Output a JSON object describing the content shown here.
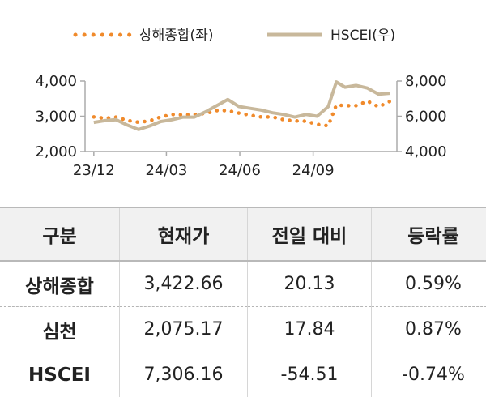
{
  "legend": {
    "series1": "상해종합(좌)",
    "series2": "HSCEI(우)"
  },
  "colors": {
    "shanghai": "#f08a2b",
    "hscei": "#c8b89b",
    "axis": "#aaaaaa"
  },
  "chart_data": {
    "type": "line",
    "x_tick_labels": [
      "23/12",
      "24/03",
      "24/06",
      "24/09"
    ],
    "y_left": {
      "ticks": [
        "4,000",
        "3,000",
        "2,000"
      ],
      "ylim": [
        2000,
        4000
      ]
    },
    "y_right": {
      "ticks": [
        "8,000",
        "6,000",
        "4,000"
      ],
      "ylim": [
        4000,
        8000
      ]
    },
    "grid": false,
    "legend_position": "top",
    "series": [
      {
        "name": "상해종합(좌)",
        "axis": "left",
        "style": "dotted",
        "x": [
          "2023-12-01",
          "2023-12-15",
          "2023-12-29",
          "2024-01-12",
          "2024-01-26",
          "2024-02-09",
          "2024-02-23",
          "2024-03-08",
          "2024-03-22",
          "2024-04-05",
          "2024-04-19",
          "2024-05-03",
          "2024-05-17",
          "2024-05-31",
          "2024-06-14",
          "2024-06-28",
          "2024-07-12",
          "2024-07-26",
          "2024-08-09",
          "2024-08-23",
          "2024-09-06",
          "2024-09-20",
          "2024-09-30",
          "2024-10-11",
          "2024-10-25",
          "2024-11-08",
          "2024-11-22",
          "2024-12-06"
        ],
        "values": [
          2980,
          2940,
          2975,
          2880,
          2830,
          2870,
          2980,
          3050,
          3040,
          3050,
          3080,
          3160,
          3160,
          3090,
          3030,
          2980,
          2980,
          2900,
          2870,
          2860,
          2770,
          2730,
          3320,
          3300,
          3300,
          3430,
          3270,
          3420
        ]
      },
      {
        "name": "HSCEI(우)",
        "axis": "right",
        "style": "solid",
        "x": [
          "2023-12-01",
          "2023-12-15",
          "2023-12-29",
          "2024-01-12",
          "2024-01-26",
          "2024-02-09",
          "2024-02-23",
          "2024-03-08",
          "2024-03-22",
          "2024-04-05",
          "2024-04-19",
          "2024-05-03",
          "2024-05-17",
          "2024-05-31",
          "2024-06-14",
          "2024-06-28",
          "2024-07-12",
          "2024-07-26",
          "2024-08-09",
          "2024-08-23",
          "2024-09-06",
          "2024-09-20",
          "2024-09-30",
          "2024-10-11",
          "2024-10-25",
          "2024-11-08",
          "2024-11-22",
          "2024-12-06"
        ],
        "values": [
          5650,
          5750,
          5800,
          5500,
          5250,
          5450,
          5700,
          5800,
          5950,
          5950,
          6250,
          6600,
          6950,
          6550,
          6450,
          6350,
          6200,
          6100,
          5950,
          6100,
          6000,
          6550,
          7950,
          7650,
          7750,
          7600,
          7250,
          7306
        ]
      }
    ]
  },
  "table": {
    "headers": [
      "구분",
      "현재가",
      "전일 대비",
      "등락률"
    ],
    "rows": [
      [
        "상해종합",
        "3,422.66",
        "20.13",
        "0.59%"
      ],
      [
        "심천",
        "2,075.17",
        "17.84",
        "0.87%"
      ],
      [
        "HSCEI",
        "7,306.16",
        "-54.51",
        "-0.74%"
      ]
    ]
  }
}
